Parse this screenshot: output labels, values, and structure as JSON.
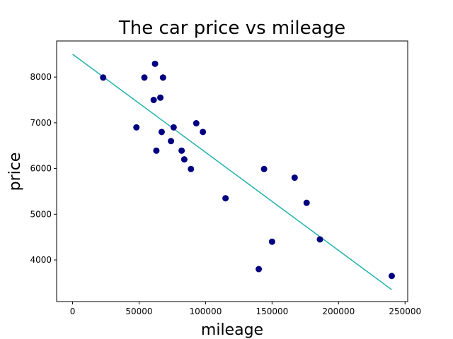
{
  "chart_data": {
    "type": "scatter",
    "title": "The car price vs mileage",
    "xlabel": "mileage",
    "ylabel": "price",
    "xlim": [
      -12000,
      252000
    ],
    "ylim": [
      3090,
      8790
    ],
    "xticks": [
      0,
      50000,
      100000,
      150000,
      200000,
      250000
    ],
    "yticks": [
      4000,
      5000,
      6000,
      7000,
      8000
    ],
    "grid": false,
    "points": [
      {
        "x": 23000,
        "y": 7990
      },
      {
        "x": 48000,
        "y": 6900
      },
      {
        "x": 54000,
        "y": 7990
      },
      {
        "x": 61000,
        "y": 7500
      },
      {
        "x": 62000,
        "y": 8290
      },
      {
        "x": 63000,
        "y": 6390
      },
      {
        "x": 66000,
        "y": 7550
      },
      {
        "x": 67000,
        "y": 6800
      },
      {
        "x": 68000,
        "y": 7990
      },
      {
        "x": 74000,
        "y": 6600
      },
      {
        "x": 76000,
        "y": 6900
      },
      {
        "x": 82000,
        "y": 6390
      },
      {
        "x": 84000,
        "y": 6200
      },
      {
        "x": 89000,
        "y": 5990
      },
      {
        "x": 93000,
        "y": 6990
      },
      {
        "x": 98000,
        "y": 6800
      },
      {
        "x": 115000,
        "y": 5350
      },
      {
        "x": 140000,
        "y": 3800
      },
      {
        "x": 144000,
        "y": 5990
      },
      {
        "x": 150000,
        "y": 4400
      },
      {
        "x": 167000,
        "y": 5800
      },
      {
        "x": 176000,
        "y": 5250
      },
      {
        "x": 186000,
        "y": 4450
      },
      {
        "x": 240000,
        "y": 3650
      }
    ],
    "fit_line": {
      "x": [
        0,
        240000
      ],
      "y": [
        8500,
        3350
      ]
    },
    "colors": {
      "points": "#000080",
      "fit_line": "#20b2aa"
    }
  }
}
